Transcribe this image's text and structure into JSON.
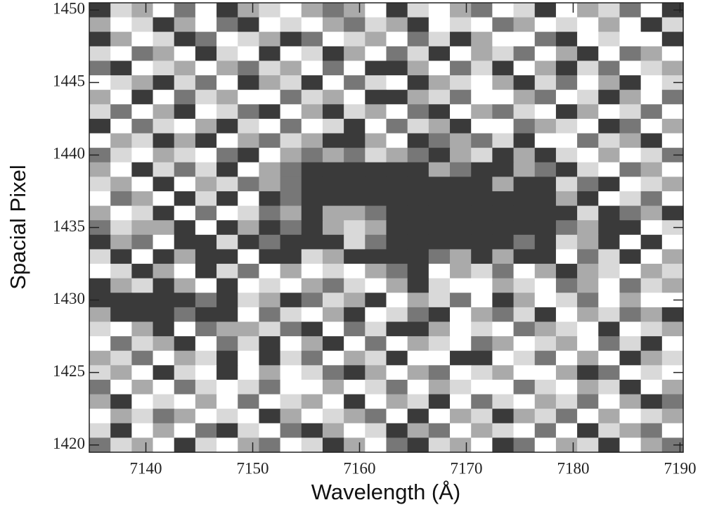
{
  "chart_data": {
    "type": "heatmap",
    "xlabel": "Wavelength (Å)",
    "ylabel": "Spacial Pixel",
    "xlim": [
      7134.7,
      7190.3
    ],
    "ylim": [
      1419.5,
      1450.5
    ],
    "xticks": [
      7140,
      7150,
      7160,
      7170,
      7180,
      7190
    ],
    "yticks": [
      1420,
      1425,
      1430,
      1435,
      1440,
      1445,
      1450
    ],
    "colormap": [
      "#ffffff",
      "#d9d9d9",
      "#aaaaaa",
      "#777777",
      "#3a3a3a"
    ],
    "z": [
      [
        4,
        1,
        2,
        0,
        3,
        0,
        4,
        2,
        1,
        0,
        2,
        3,
        2,
        0,
        4,
        1,
        0,
        2,
        3,
        0,
        1,
        4,
        0,
        2,
        1,
        3,
        0,
        4
      ],
      [
        2,
        0,
        1,
        4,
        2,
        0,
        3,
        4,
        0,
        1,
        0,
        2,
        3,
        1,
        2,
        4,
        0,
        1,
        0,
        3,
        2,
        0,
        1,
        0,
        2,
        0,
        4,
        1
      ],
      [
        4,
        2,
        0,
        1,
        4,
        3,
        0,
        1,
        2,
        4,
        3,
        0,
        1,
        2,
        0,
        3,
        1,
        4,
        2,
        0,
        0,
        3,
        4,
        0,
        1,
        0,
        0,
        4
      ],
      [
        1,
        0,
        3,
        2,
        0,
        4,
        1,
        0,
        4,
        0,
        1,
        4,
        2,
        0,
        3,
        1,
        4,
        0,
        2,
        1,
        3,
        0,
        2,
        4,
        0,
        3,
        2,
        0
      ],
      [
        3,
        4,
        0,
        1,
        2,
        0,
        2,
        3,
        1,
        2,
        0,
        3,
        0,
        4,
        4,
        2,
        0,
        3,
        1,
        4,
        0,
        2,
        4,
        1,
        3,
        0,
        1,
        2
      ],
      [
        0,
        1,
        2,
        4,
        1,
        3,
        0,
        4,
        2,
        1,
        4,
        0,
        3,
        1,
        0,
        4,
        2,
        1,
        0,
        2,
        4,
        1,
        3,
        0,
        2,
        4,
        0,
        1
      ],
      [
        2,
        0,
        4,
        0,
        3,
        1,
        2,
        0,
        0,
        3,
        1,
        2,
        0,
        4,
        4,
        2,
        1,
        3,
        0,
        0,
        2,
        3,
        0,
        1,
        4,
        2,
        0,
        3
      ],
      [
        1,
        3,
        0,
        2,
        4,
        0,
        1,
        3,
        4,
        0,
        2,
        4,
        1,
        2,
        0,
        3,
        4,
        0,
        2,
        3,
        1,
        0,
        4,
        2,
        0,
        1,
        3,
        0
      ],
      [
        4,
        0,
        3,
        1,
        0,
        2,
        4,
        1,
        0,
        3,
        0,
        1,
        4,
        0,
        3,
        1,
        2,
        4,
        0,
        0,
        3,
        2,
        1,
        0,
        4,
        3,
        0,
        2
      ],
      [
        0,
        2,
        1,
        4,
        2,
        4,
        0,
        2,
        3,
        1,
        2,
        4,
        4,
        2,
        0,
        4,
        3,
        2,
        3,
        1,
        4,
        0,
        0,
        3,
        1,
        2,
        4,
        0
      ],
      [
        3,
        1,
        0,
        2,
        1,
        0,
        3,
        4,
        0,
        2,
        3,
        2,
        3,
        1,
        2,
        3,
        4,
        2,
        1,
        4,
        2,
        4,
        1,
        0,
        2,
        0,
        1,
        3
      ],
      [
        2,
        0,
        4,
        1,
        3,
        1,
        4,
        0,
        2,
        3,
        4,
        4,
        4,
        4,
        4,
        4,
        2,
        3,
        4,
        4,
        2,
        3,
        4,
        1,
        0,
        3,
        2,
        0
      ],
      [
        1,
        2,
        0,
        4,
        0,
        2,
        1,
        3,
        2,
        3,
        4,
        4,
        4,
        4,
        4,
        4,
        4,
        4,
        4,
        2,
        4,
        4,
        1,
        3,
        4,
        0,
        1,
        2
      ],
      [
        0,
        3,
        2,
        0,
        4,
        1,
        4,
        0,
        4,
        3,
        4,
        4,
        4,
        4,
        4,
        4,
        4,
        4,
        4,
        4,
        4,
        4,
        2,
        4,
        0,
        1,
        3,
        0
      ],
      [
        2,
        0,
        1,
        4,
        0,
        3,
        0,
        1,
        3,
        2,
        4,
        2,
        2,
        3,
        4,
        4,
        4,
        4,
        4,
        4,
        4,
        4,
        4,
        1,
        4,
        3,
        2,
        4
      ],
      [
        3,
        1,
        2,
        2,
        4,
        0,
        4,
        2,
        4,
        3,
        4,
        2,
        1,
        2,
        4,
        4,
        4,
        4,
        4,
        4,
        4,
        4,
        3,
        2,
        4,
        4,
        0,
        1
      ],
      [
        4,
        2,
        3,
        0,
        4,
        4,
        1,
        4,
        3,
        4,
        4,
        4,
        1,
        3,
        4,
        4,
        4,
        4,
        4,
        4,
        3,
        4,
        1,
        2,
        4,
        0,
        4,
        0
      ],
      [
        1,
        4,
        0,
        4,
        2,
        4,
        4,
        0,
        4,
        4,
        1,
        2,
        4,
        4,
        4,
        4,
        3,
        2,
        4,
        2,
        4,
        4,
        0,
        3,
        1,
        4,
        0,
        2
      ],
      [
        0,
        1,
        4,
        2,
        0,
        4,
        1,
        3,
        0,
        2,
        0,
        1,
        0,
        2,
        3,
        4,
        0,
        2,
        1,
        3,
        0,
        2,
        4,
        2,
        1,
        0,
        2,
        1
      ],
      [
        4,
        2,
        1,
        4,
        2,
        0,
        4,
        0,
        1,
        0,
        2,
        3,
        1,
        0,
        2,
        4,
        1,
        0,
        0,
        2,
        1,
        0,
        3,
        2,
        0,
        3,
        1,
        2
      ],
      [
        4,
        4,
        4,
        4,
        4,
        3,
        4,
        1,
        2,
        4,
        3,
        1,
        2,
        4,
        0,
        2,
        1,
        3,
        0,
        4,
        2,
        0,
        1,
        3,
        0,
        2,
        0,
        0
      ],
      [
        2,
        4,
        4,
        4,
        3,
        4,
        4,
        0,
        3,
        1,
        0,
        2,
        4,
        0,
        1,
        3,
        4,
        0,
        2,
        3,
        1,
        4,
        0,
        2,
        1,
        3,
        2,
        4
      ],
      [
        1,
        0,
        2,
        4,
        0,
        3,
        2,
        2,
        1,
        3,
        4,
        0,
        3,
        1,
        4,
        4,
        2,
        0,
        1,
        0,
        3,
        2,
        1,
        0,
        4,
        0,
        1,
        2
      ],
      [
        0,
        3,
        1,
        2,
        4,
        0,
        3,
        1,
        4,
        0,
        2,
        4,
        0,
        3,
        0,
        2,
        1,
        0,
        3,
        2,
        0,
        1,
        2,
        0,
        3,
        1,
        4,
        0
      ],
      [
        2,
        1,
        3,
        0,
        2,
        1,
        4,
        0,
        4,
        1,
        3,
        0,
        2,
        1,
        4,
        0,
        0,
        4,
        4,
        0,
        1,
        3,
        0,
        2,
        0,
        4,
        2,
        1
      ],
      [
        1,
        2,
        0,
        4,
        1,
        0,
        4,
        0,
        2,
        0,
        1,
        3,
        4,
        2,
        0,
        2,
        3,
        0,
        1,
        2,
        0,
        0,
        2,
        4,
        3,
        0,
        1,
        0
      ],
      [
        3,
        0,
        2,
        0,
        3,
        1,
        0,
        1,
        3,
        0,
        0,
        2,
        0,
        1,
        3,
        0,
        2,
        1,
        0,
        0,
        3,
        1,
        0,
        2,
        1,
        4,
        0,
        2
      ],
      [
        2,
        4,
        0,
        1,
        0,
        2,
        0,
        3,
        0,
        1,
        2,
        0,
        4,
        0,
        2,
        1,
        4,
        0,
        3,
        1,
        0,
        2,
        1,
        3,
        0,
        2,
        4,
        3
      ],
      [
        0,
        2,
        1,
        3,
        2,
        0,
        1,
        0,
        4,
        2,
        0,
        1,
        2,
        3,
        0,
        4,
        0,
        2,
        1,
        4,
        2,
        1,
        3,
        0,
        2,
        0,
        1,
        2
      ],
      [
        1,
        4,
        0,
        2,
        0,
        3,
        4,
        1,
        0,
        3,
        4,
        2,
        0,
        1,
        4,
        2,
        3,
        0,
        2,
        1,
        0,
        3,
        0,
        4,
        1,
        2,
        3,
        0
      ],
      [
        3,
        1,
        2,
        0,
        4,
        1,
        0,
        2,
        3,
        0,
        1,
        4,
        2,
        0,
        3,
        4,
        1,
        2,
        0,
        4,
        3,
        0,
        2,
        1,
        4,
        0,
        2,
        3
      ]
    ]
  }
}
